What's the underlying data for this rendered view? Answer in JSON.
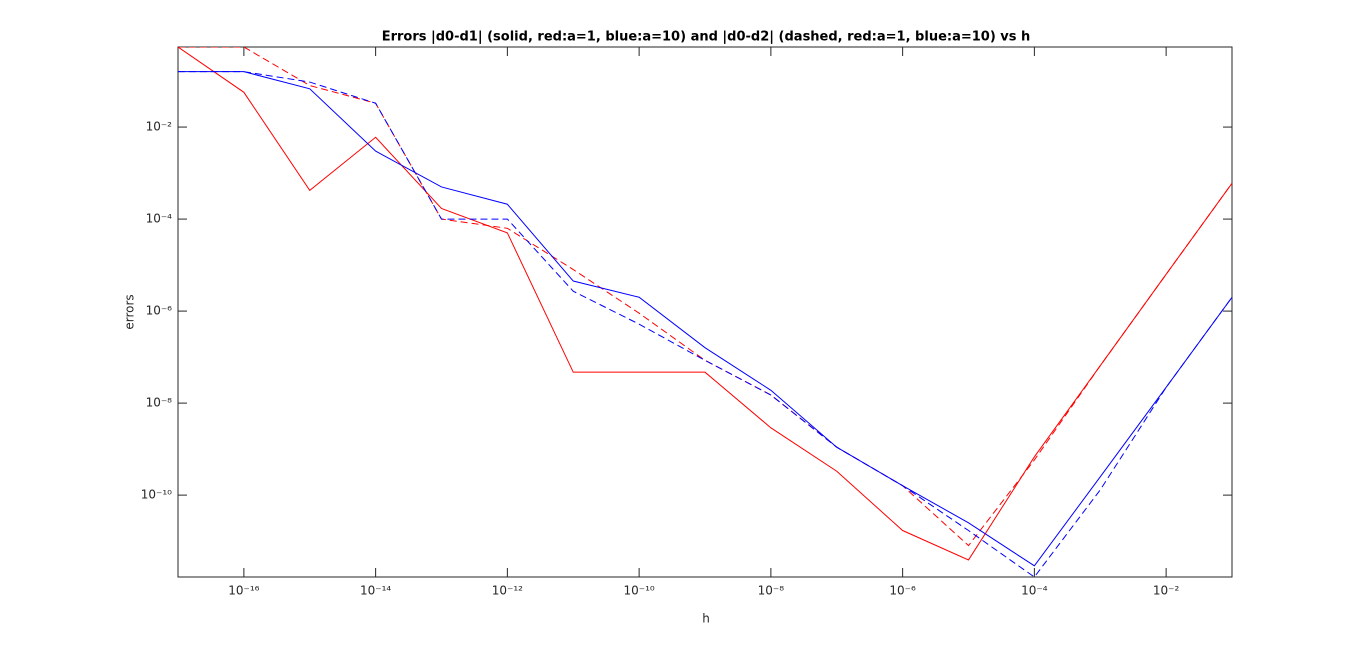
{
  "chart_data": {
    "type": "line",
    "title": "Errors |d0-d1| (solid, red:a=1, blue:a=10) and |d0-d2| (dashed, red:a=1, blue:a=10) vs h",
    "x_label": "h",
    "y_label": "errors",
    "x": [
      1e-17,
      1e-16,
      1e-15,
      1e-14,
      1e-13,
      1e-12,
      1e-11,
      1e-10,
      1e-09,
      1e-08,
      1e-07,
      1e-06,
      1e-05,
      0.0001,
      0.001,
      0.01,
      0.1
    ],
    "series": [
      {
        "color": "#ff0000",
        "linestyle": "solid",
        "values": [
          0.55,
          0.057,
          0.00042,
          0.006,
          0.00017,
          5e-05,
          4.7e-08,
          4.7e-08,
          4.7e-08,
          2.9e-09,
          3.3e-10,
          1.7e-11,
          3.9e-12,
          6.8e-10,
          6.5e-08,
          6.3e-06,
          0.0006
        ]
      },
      {
        "color": "#ff0000",
        "linestyle": "dashed",
        "values": [
          0.55,
          0.55,
          0.08,
          0.033,
          0.0001,
          6.3e-05,
          8e-06,
          9e-07,
          8.5e-08,
          1.5e-08,
          1.1e-09,
          1.6e-10,
          8e-12,
          5.8e-10,
          6.5e-08,
          6.3e-06,
          0.0006
        ]
      },
      {
        "color": "#0000ff",
        "linestyle": "solid",
        "values": [
          0.16,
          0.16,
          0.068,
          0.003,
          0.0005,
          0.00021,
          4.5e-06,
          2e-06,
          1.6e-07,
          1.9e-08,
          1.1e-09,
          1.6e-10,
          2.5e-11,
          2.9e-12,
          2.5e-10,
          2.2e-08,
          2e-06
        ]
      },
      {
        "color": "#0000ff",
        "linestyle": "dashed",
        "values": [
          0.16,
          0.16,
          0.095,
          0.033,
          0.0001,
          0.0001,
          2.7e-06,
          5.2e-07,
          8.5e-08,
          1.5e-08,
          1.1e-09,
          1.6e-10,
          1.7e-11,
          1.66e-12,
          1.3e-10,
          2.2e-08,
          2e-06
        ]
      }
    ],
    "x_log": true,
    "y_log": true,
    "xlim": [
      1e-17,
      0.1
    ],
    "ylim": [
      1.66e-12,
      0.55
    ],
    "xticks": [
      {
        "value": 1e-16,
        "label": "10⁻¹⁶"
      },
      {
        "value": 1e-14,
        "label": "10⁻¹⁴"
      },
      {
        "value": 1e-12,
        "label": "10⁻¹²"
      },
      {
        "value": 1e-10,
        "label": "10⁻¹⁰"
      },
      {
        "value": 1e-08,
        "label": "10⁻⁸"
      },
      {
        "value": 1e-06,
        "label": "10⁻⁶"
      },
      {
        "value": 0.0001,
        "label": "10⁻⁴"
      },
      {
        "value": 0.01,
        "label": "10⁻²"
      }
    ],
    "yticks": [
      {
        "value": 1e-10,
        "label": "10⁻¹⁰"
      },
      {
        "value": 1e-08,
        "label": "10⁻⁸"
      },
      {
        "value": 1e-06,
        "label": "10⁻⁶"
      },
      {
        "value": 0.0001,
        "label": "10⁻⁴"
      },
      {
        "value": 0.01,
        "label": "10⁻²"
      }
    ],
    "grid": false
  }
}
